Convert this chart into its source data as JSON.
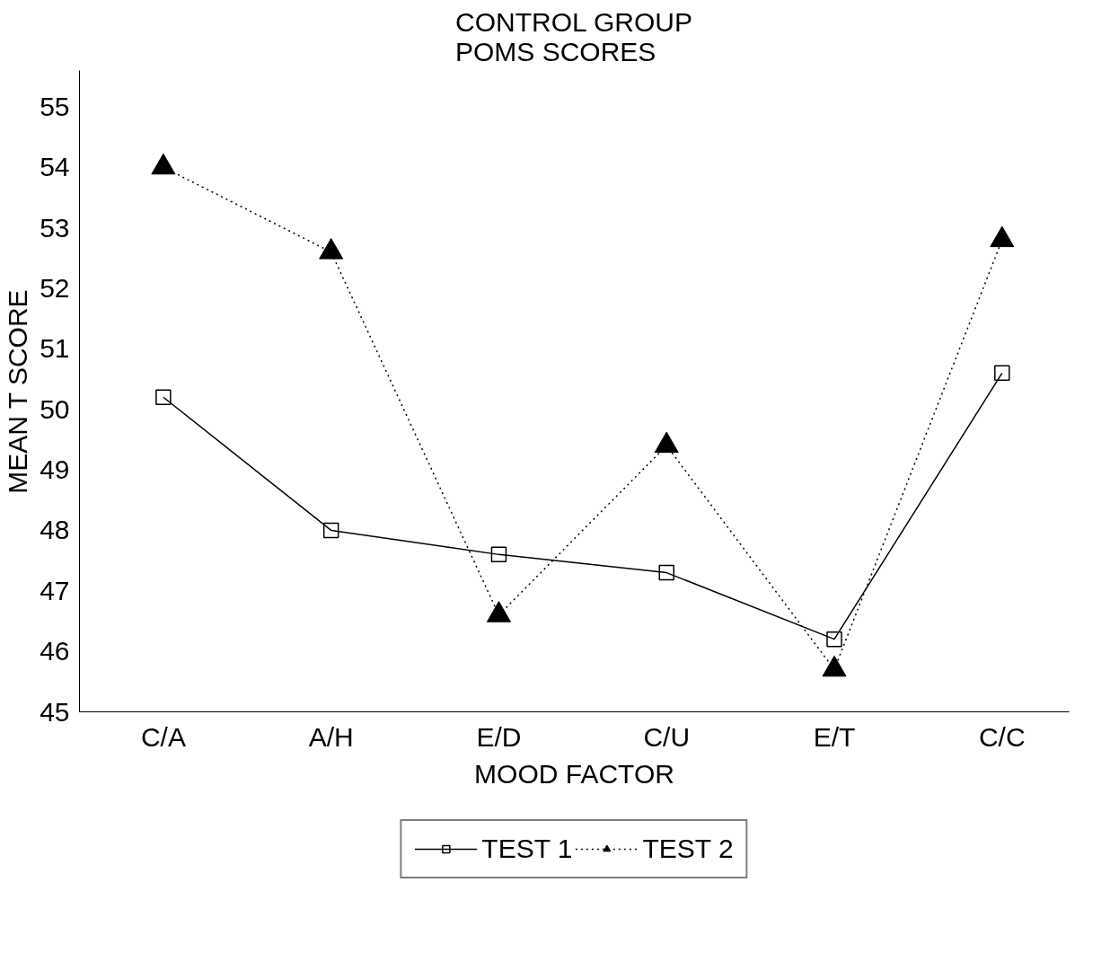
{
  "chart_data": {
    "type": "line",
    "title": "CONTROL GROUP\nPOMS SCORES",
    "xlabel": "MOOD FACTOR",
    "ylabel": "MEAN T SCORE",
    "categories": [
      "C/A",
      "A/H",
      "E/D",
      "C/U",
      "E/T",
      "C/C"
    ],
    "series": [
      {
        "name": "TEST 1",
        "color": "#000000",
        "marker": "square",
        "line_style": "solid",
        "values": [
          50.2,
          48.0,
          47.6,
          47.3,
          46.2,
          50.6
        ]
      },
      {
        "name": "TEST 2",
        "color": "#000000",
        "marker": "triangle",
        "line_style": "dotted",
        "values": [
          54.0,
          52.6,
          46.6,
          49.4,
          45.7,
          52.8
        ]
      }
    ],
    "ylim": [
      45,
      55.6
    ],
    "yticks": [
      45,
      46,
      47,
      48,
      49,
      50,
      51,
      52,
      53,
      54,
      55
    ],
    "grid": false,
    "legend": "bottom"
  }
}
